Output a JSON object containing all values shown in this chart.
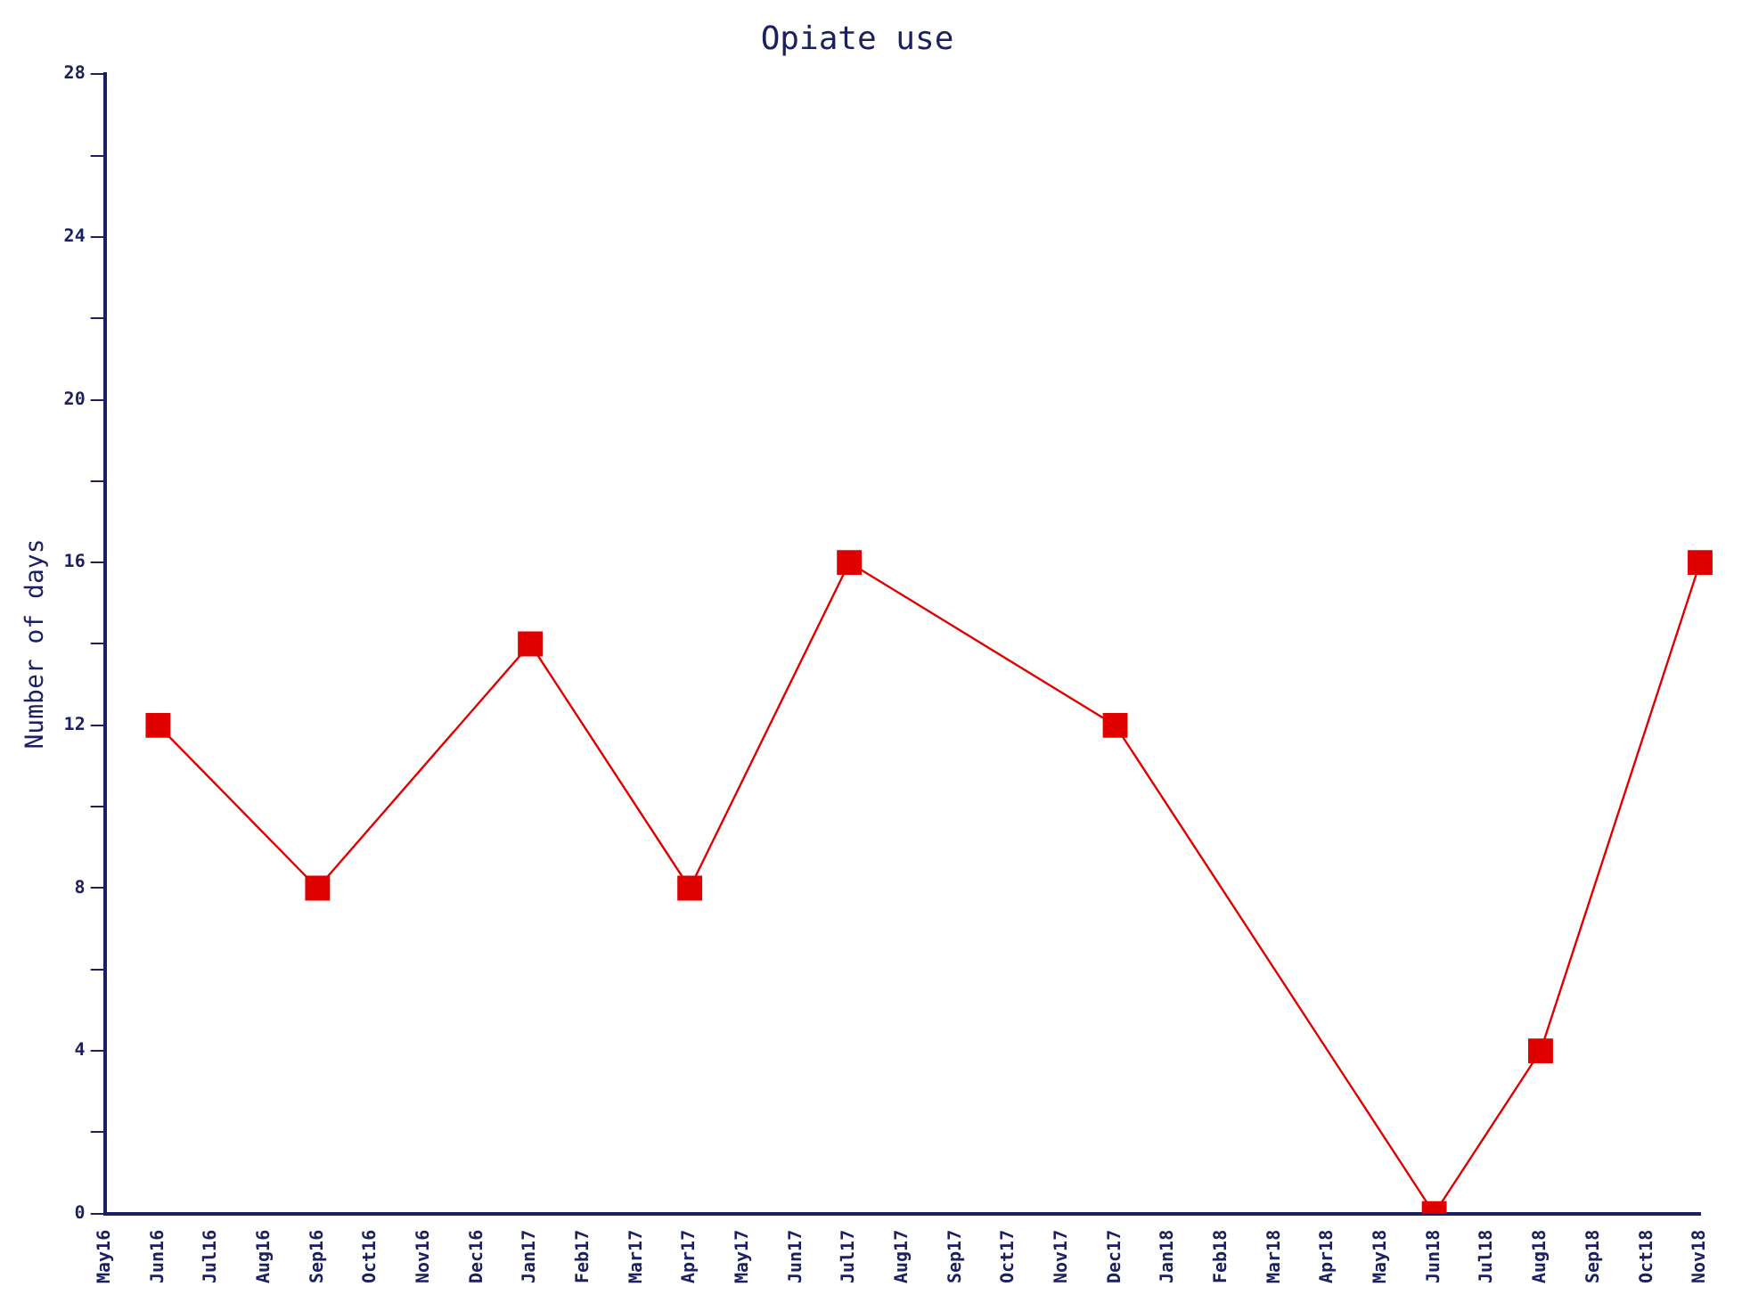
{
  "chart_data": {
    "type": "line",
    "title": "Opiate use",
    "ylabel": "Number of days",
    "categories": [
      "May16",
      "Jun16",
      "Jul16",
      "Aug16",
      "Sep16",
      "Oct16",
      "Nov16",
      "Dec16",
      "Jan17",
      "Feb17",
      "Mar17",
      "Apr17",
      "May17",
      "Jun17",
      "Jul17",
      "Aug17",
      "Sep17",
      "Oct17",
      "Nov17",
      "Dec17",
      "Jan18",
      "Feb18",
      "Mar18",
      "Apr18",
      "May18",
      "Jun18",
      "Jul18",
      "Aug18",
      "Sep18",
      "Oct18",
      "Nov18"
    ],
    "series": [
      {
        "color": "#e00000",
        "values": [
          null,
          12,
          null,
          null,
          8,
          null,
          null,
          null,
          14,
          null,
          null,
          8,
          null,
          null,
          16,
          null,
          null,
          null,
          null,
          12,
          null,
          null,
          null,
          null,
          null,
          0,
          null,
          4,
          null,
          null,
          16
        ]
      }
    ],
    "ylim": [
      0,
      28
    ],
    "yticks": [
      0,
      {
        "value": 2,
        "label": null
      },
      4,
      {
        "value": 6,
        "label": null
      },
      8,
      {
        "value": 10,
        "label": null
      },
      12,
      {
        "value": 14,
        "label": null
      },
      16,
      {
        "value": 18,
        "label": null
      },
      20,
      {
        "value": 22,
        "label": null
      },
      24,
      {
        "value": 26,
        "label": null
      },
      28
    ],
    "marker": "square",
    "line_style": "solid",
    "grid": false,
    "legend": false
  }
}
